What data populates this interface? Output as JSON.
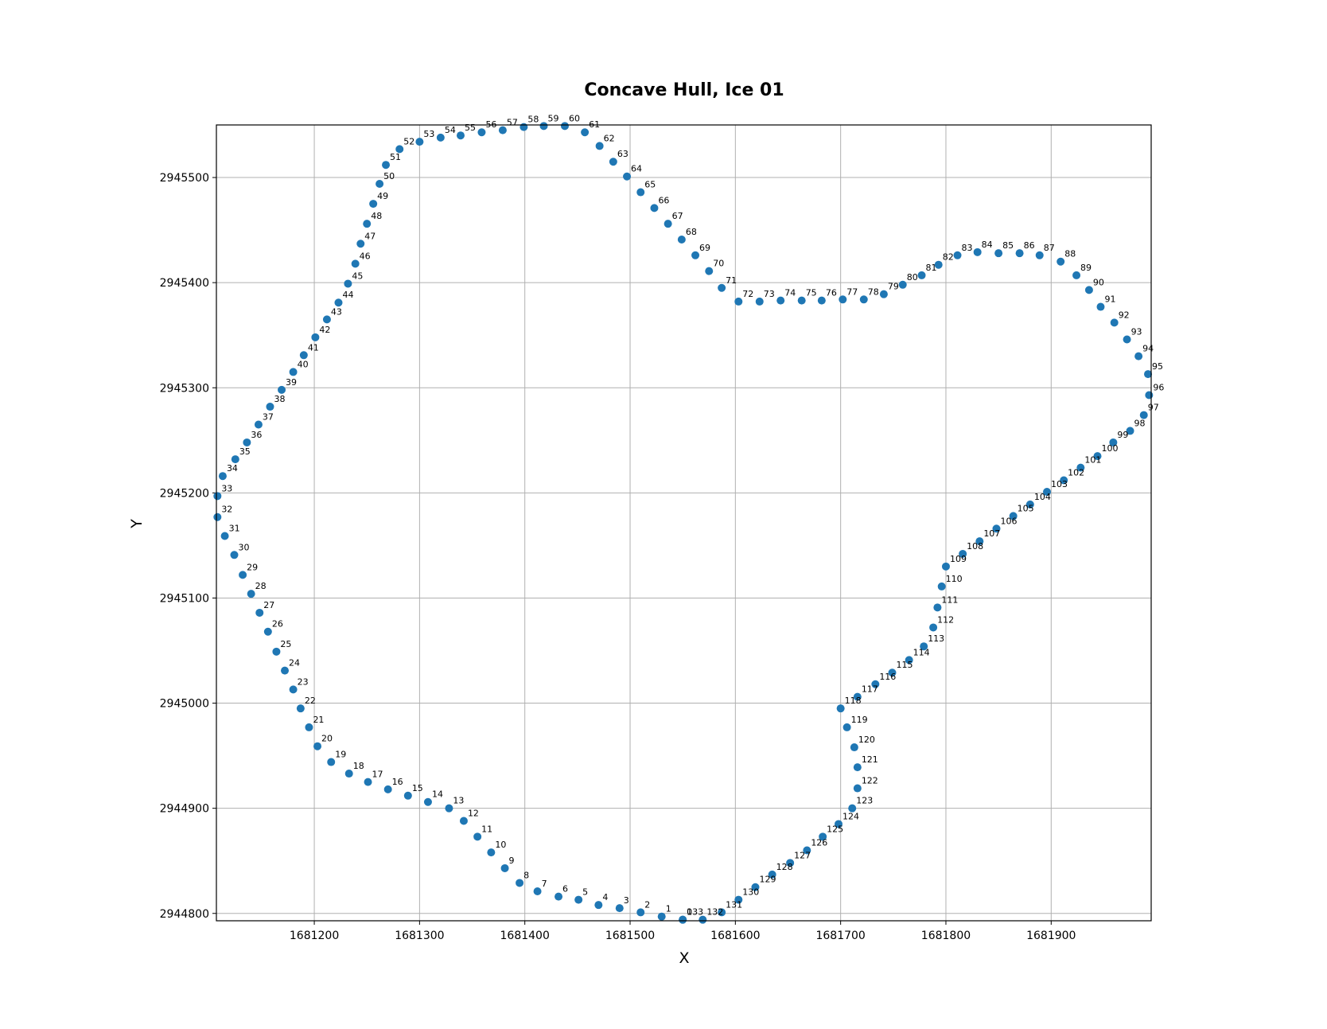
{
  "chart_data": {
    "type": "scatter",
    "title": "Concave Hull, Ice 01",
    "xlabel": "X",
    "ylabel": "Y",
    "xlim": [
      1681107,
      1681995
    ],
    "ylim": [
      2944793,
      2945550
    ],
    "grid": true,
    "marker_color": "#1f77b4",
    "xticks": [
      1681200,
      1681300,
      1681400,
      1681500,
      1681600,
      1681700,
      1681800,
      1681900
    ],
    "yticks": [
      2944800,
      2944900,
      2945000,
      2945100,
      2945200,
      2945300,
      2945400,
      2945500
    ],
    "xtick_labels": [
      "1681200",
      "1681300",
      "1681400",
      "1681500",
      "1681600",
      "1681700",
      "1681800",
      "1681900"
    ],
    "ytick_labels": [
      "2944800",
      "2944900",
      "2945000",
      "2945100",
      "2945200",
      "2945300",
      "2945400",
      "2945500"
    ],
    "points": [
      {
        "label": "0",
        "x": 1681550,
        "y": 2944794
      },
      {
        "label": "1",
        "x": 1681530,
        "y": 2944797
      },
      {
        "label": "2",
        "x": 1681510,
        "y": 2944801
      },
      {
        "label": "3",
        "x": 1681490,
        "y": 2944805
      },
      {
        "label": "4",
        "x": 1681470,
        "y": 2944808
      },
      {
        "label": "5",
        "x": 1681451,
        "y": 2944813
      },
      {
        "label": "6",
        "x": 1681432,
        "y": 2944816
      },
      {
        "label": "7",
        "x": 1681412,
        "y": 2944821
      },
      {
        "label": "8",
        "x": 1681395,
        "y": 2944829
      },
      {
        "label": "9",
        "x": 1681381,
        "y": 2944843
      },
      {
        "label": "10",
        "x": 1681368,
        "y": 2944858
      },
      {
        "label": "11",
        "x": 1681355,
        "y": 2944873
      },
      {
        "label": "12",
        "x": 1681342,
        "y": 2944888
      },
      {
        "label": "13",
        "x": 1681328,
        "y": 2944900
      },
      {
        "label": "14",
        "x": 1681308,
        "y": 2944906
      },
      {
        "label": "15",
        "x": 1681289,
        "y": 2944912
      },
      {
        "label": "16",
        "x": 1681270,
        "y": 2944918
      },
      {
        "label": "17",
        "x": 1681251,
        "y": 2944925
      },
      {
        "label": "18",
        "x": 1681233,
        "y": 2944933
      },
      {
        "label": "19",
        "x": 1681216,
        "y": 2944944
      },
      {
        "label": "20",
        "x": 1681203,
        "y": 2944959
      },
      {
        "label": "21",
        "x": 1681195,
        "y": 2944977
      },
      {
        "label": "22",
        "x": 1681187,
        "y": 2944995
      },
      {
        "label": "23",
        "x": 1681180,
        "y": 2945013
      },
      {
        "label": "24",
        "x": 1681172,
        "y": 2945031
      },
      {
        "label": "25",
        "x": 1681164,
        "y": 2945049
      },
      {
        "label": "26",
        "x": 1681156,
        "y": 2945068
      },
      {
        "label": "27",
        "x": 1681148,
        "y": 2945086
      },
      {
        "label": "28",
        "x": 1681140,
        "y": 2945104
      },
      {
        "label": "29",
        "x": 1681132,
        "y": 2945122
      },
      {
        "label": "30",
        "x": 1681124,
        "y": 2945141
      },
      {
        "label": "31",
        "x": 1681115,
        "y": 2945159
      },
      {
        "label": "32",
        "x": 1681108,
        "y": 2945177
      },
      {
        "label": "33",
        "x": 1681108,
        "y": 2945197
      },
      {
        "label": "34",
        "x": 1681113,
        "y": 2945216
      },
      {
        "label": "35",
        "x": 1681125,
        "y": 2945232
      },
      {
        "label": "36",
        "x": 1681136,
        "y": 2945248
      },
      {
        "label": "37",
        "x": 1681147,
        "y": 2945265
      },
      {
        "label": "38",
        "x": 1681158,
        "y": 2945282
      },
      {
        "label": "39",
        "x": 1681169,
        "y": 2945298
      },
      {
        "label": "40",
        "x": 1681180,
        "y": 2945315
      },
      {
        "label": "41",
        "x": 1681190,
        "y": 2945331
      },
      {
        "label": "42",
        "x": 1681201,
        "y": 2945348
      },
      {
        "label": "43",
        "x": 1681212,
        "y": 2945365
      },
      {
        "label": "44",
        "x": 1681223,
        "y": 2945381
      },
      {
        "label": "45",
        "x": 1681232,
        "y": 2945399
      },
      {
        "label": "46",
        "x": 1681239,
        "y": 2945418
      },
      {
        "label": "47",
        "x": 1681244,
        "y": 2945437
      },
      {
        "label": "48",
        "x": 1681250,
        "y": 2945456
      },
      {
        "label": "49",
        "x": 1681256,
        "y": 2945475
      },
      {
        "label": "50",
        "x": 1681262,
        "y": 2945494
      },
      {
        "label": "51",
        "x": 1681268,
        "y": 2945512
      },
      {
        "label": "52",
        "x": 1681281,
        "y": 2945527
      },
      {
        "label": "53",
        "x": 1681300,
        "y": 2945534
      },
      {
        "label": "54",
        "x": 1681320,
        "y": 2945538
      },
      {
        "label": "55",
        "x": 1681339,
        "y": 2945540
      },
      {
        "label": "56",
        "x": 1681359,
        "y": 2945543
      },
      {
        "label": "57",
        "x": 1681379,
        "y": 2945545
      },
      {
        "label": "58",
        "x": 1681399,
        "y": 2945548
      },
      {
        "label": "59",
        "x": 1681418,
        "y": 2945549
      },
      {
        "label": "60",
        "x": 1681438,
        "y": 2945549
      },
      {
        "label": "61",
        "x": 1681457,
        "y": 2945543
      },
      {
        "label": "62",
        "x": 1681471,
        "y": 2945530
      },
      {
        "label": "63",
        "x": 1681484,
        "y": 2945515
      },
      {
        "label": "64",
        "x": 1681497,
        "y": 2945501
      },
      {
        "label": "65",
        "x": 1681510,
        "y": 2945486
      },
      {
        "label": "66",
        "x": 1681523,
        "y": 2945471
      },
      {
        "label": "67",
        "x": 1681536,
        "y": 2945456
      },
      {
        "label": "68",
        "x": 1681549,
        "y": 2945441
      },
      {
        "label": "69",
        "x": 1681562,
        "y": 2945426
      },
      {
        "label": "70",
        "x": 1681575,
        "y": 2945411
      },
      {
        "label": "71",
        "x": 1681587,
        "y": 2945395
      },
      {
        "label": "72",
        "x": 1681603,
        "y": 2945382
      },
      {
        "label": "73",
        "x": 1681623,
        "y": 2945382
      },
      {
        "label": "74",
        "x": 1681643,
        "y": 2945383
      },
      {
        "label": "75",
        "x": 1681663,
        "y": 2945383
      },
      {
        "label": "76",
        "x": 1681682,
        "y": 2945383
      },
      {
        "label": "77",
        "x": 1681702,
        "y": 2945384
      },
      {
        "label": "78",
        "x": 1681722,
        "y": 2945384
      },
      {
        "label": "79",
        "x": 1681741,
        "y": 2945389
      },
      {
        "label": "80",
        "x": 1681759,
        "y": 2945398
      },
      {
        "label": "81",
        "x": 1681777,
        "y": 2945407
      },
      {
        "label": "82",
        "x": 1681793,
        "y": 2945417
      },
      {
        "label": "83",
        "x": 1681811,
        "y": 2945426
      },
      {
        "label": "84",
        "x": 1681830,
        "y": 2945429
      },
      {
        "label": "85",
        "x": 1681850,
        "y": 2945428
      },
      {
        "label": "86",
        "x": 1681870,
        "y": 2945428
      },
      {
        "label": "87",
        "x": 1681889,
        "y": 2945426
      },
      {
        "label": "88",
        "x": 1681909,
        "y": 2945420
      },
      {
        "label": "89",
        "x": 1681924,
        "y": 2945407
      },
      {
        "label": "90",
        "x": 1681936,
        "y": 2945393
      },
      {
        "label": "91",
        "x": 1681947,
        "y": 2945377
      },
      {
        "label": "92",
        "x": 1681960,
        "y": 2945362
      },
      {
        "label": "93",
        "x": 1681972,
        "y": 2945346
      },
      {
        "label": "94",
        "x": 1681983,
        "y": 2945330
      },
      {
        "label": "95",
        "x": 1681992,
        "y": 2945313
      },
      {
        "label": "96",
        "x": 1681993,
        "y": 2945293
      },
      {
        "label": "97",
        "x": 1681988,
        "y": 2945274
      },
      {
        "label": "98",
        "x": 1681975,
        "y": 2945259
      },
      {
        "label": "99",
        "x": 1681959,
        "y": 2945248
      },
      {
        "label": "100",
        "x": 1681944,
        "y": 2945235
      },
      {
        "label": "101",
        "x": 1681928,
        "y": 2945224
      },
      {
        "label": "102",
        "x": 1681912,
        "y": 2945212
      },
      {
        "label": "103",
        "x": 1681896,
        "y": 2945201
      },
      {
        "label": "104",
        "x": 1681880,
        "y": 2945189
      },
      {
        "label": "105",
        "x": 1681864,
        "y": 2945178
      },
      {
        "label": "106",
        "x": 1681848,
        "y": 2945166
      },
      {
        "label": "107",
        "x": 1681832,
        "y": 2945154
      },
      {
        "label": "108",
        "x": 1681816,
        "y": 2945142
      },
      {
        "label": "109",
        "x": 1681800,
        "y": 2945130
      },
      {
        "label": "110",
        "x": 1681796,
        "y": 2945111
      },
      {
        "label": "111",
        "x": 1681792,
        "y": 2945091
      },
      {
        "label": "112",
        "x": 1681788,
        "y": 2945072
      },
      {
        "label": "113",
        "x": 1681779,
        "y": 2945054
      },
      {
        "label": "114",
        "x": 1681765,
        "y": 2945041
      },
      {
        "label": "115",
        "x": 1681749,
        "y": 2945029
      },
      {
        "label": "116",
        "x": 1681733,
        "y": 2945018
      },
      {
        "label": "117",
        "x": 1681716,
        "y": 2945006
      },
      {
        "label": "118",
        "x": 1681700,
        "y": 2944995
      },
      {
        "label": "119",
        "x": 1681706,
        "y": 2944977
      },
      {
        "label": "120",
        "x": 1681713,
        "y": 2944958
      },
      {
        "label": "121",
        "x": 1681716,
        "y": 2944939
      },
      {
        "label": "122",
        "x": 1681716,
        "y": 2944919
      },
      {
        "label": "123",
        "x": 1681711,
        "y": 2944900
      },
      {
        "label": "124",
        "x": 1681698,
        "y": 2944885
      },
      {
        "label": "125",
        "x": 1681683,
        "y": 2944873
      },
      {
        "label": "126",
        "x": 1681668,
        "y": 2944860
      },
      {
        "label": "127",
        "x": 1681652,
        "y": 2944848
      },
      {
        "label": "128",
        "x": 1681635,
        "y": 2944837
      },
      {
        "label": "129",
        "x": 1681619,
        "y": 2944825
      },
      {
        "label": "130",
        "x": 1681603,
        "y": 2944813
      },
      {
        "label": "131",
        "x": 1681587,
        "y": 2944801
      },
      {
        "label": "132",
        "x": 1681569,
        "y": 2944794
      },
      {
        "label": "133",
        "x": 1681550,
        "y": 2944794
      }
    ]
  }
}
